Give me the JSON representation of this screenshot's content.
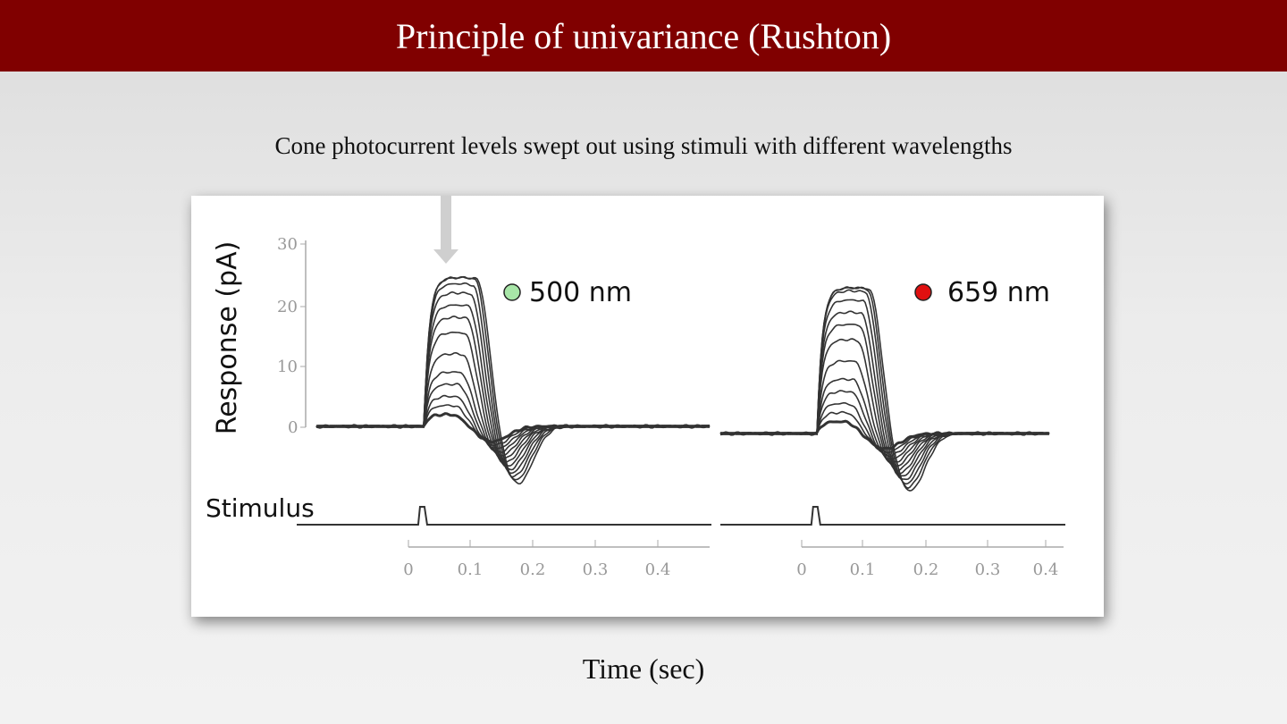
{
  "slide": {
    "title": "Principle of univariance (Rushton)",
    "subtitle": "Cone photocurrent levels swept out using stimuli with different wavelengths",
    "time_label": "Time (sec)"
  },
  "colors": {
    "title_bar": "#800000",
    "trace": "#333333",
    "marker_500": "#a8e6a8",
    "marker_659": "#e01010",
    "arrow": "#cfcfcf"
  },
  "chart_data": [
    {
      "type": "line",
      "legend": "500 nm",
      "ylabel": "Response (pA)",
      "stimulus_label": "Stimulus",
      "ylim": [
        0,
        30
      ],
      "yticks": [
        "0",
        "10",
        "20",
        "30"
      ],
      "xlim": [
        0,
        0.45
      ],
      "xticks": [
        "0",
        "0.1",
        "0.2",
        "0.3",
        "0.4"
      ],
      "peaks_pA": [
        2,
        3.5,
        5,
        7,
        9,
        12,
        15.5,
        18,
        20,
        22,
        23.5,
        24.5,
        24.5
      ],
      "stimulus_onset": 0.02
    },
    {
      "type": "line",
      "legend": "659 nm",
      "ylim": [
        0,
        30
      ],
      "xlim": [
        0,
        0.45
      ],
      "xticks": [
        "0",
        "0.1",
        "0.2",
        "0.3",
        "0.4"
      ],
      "peaks_pA": [
        2,
        3.5,
        5,
        7,
        9,
        12,
        15.5,
        18,
        20,
        22,
        23.5,
        24,
        24
      ],
      "stimulus_onset": 0.02
    }
  ]
}
